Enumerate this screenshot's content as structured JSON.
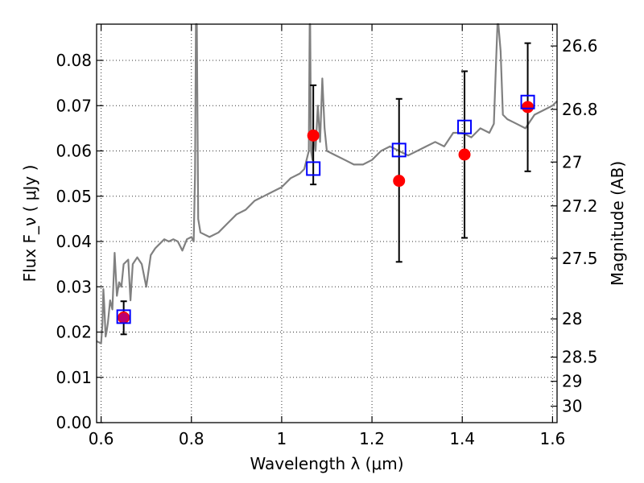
{
  "chart_data": {
    "type": "scatter",
    "xlabel": "Wavelength  λ (μm)",
    "ylabel": "Flux  F_ν  ( μJy )",
    "y2label": "Magnitude (AB)",
    "xlim": [
      0.59,
      1.61
    ],
    "ylim": [
      0.0,
      0.088
    ],
    "grid": true,
    "x_ticks": [
      0.6,
      0.8,
      1.0,
      1.2,
      1.4,
      1.6
    ],
    "x_tick_labels": [
      "0.6",
      "0.8",
      "1",
      "1.2",
      "1.4",
      "1.6"
    ],
    "y_ticks": [
      0.0,
      0.01,
      0.02,
      0.03,
      0.04,
      0.05,
      0.06,
      0.07,
      0.08
    ],
    "y_tick_labels": [
      "0.00",
      "0.01",
      "0.02",
      "0.03",
      "0.04",
      "0.05",
      "0.06",
      "0.07",
      "0.08"
    ],
    "y2_ticks": [
      26.6,
      26.8,
      27,
      27.2,
      27.5,
      28,
      28.5,
      29,
      30
    ],
    "y2_tick_labels": [
      "26.6",
      "26.8",
      "27",
      "27.2",
      "27.5",
      "28",
      "28.5",
      "29",
      "30"
    ],
    "model_spectrum": {
      "color": "#808080",
      "x": [
        0.59,
        0.6,
        0.603,
        0.605,
        0.607,
        0.61,
        0.612,
        0.615,
        0.62,
        0.625,
        0.63,
        0.635,
        0.64,
        0.645,
        0.65,
        0.66,
        0.665,
        0.67,
        0.68,
        0.69,
        0.7,
        0.71,
        0.72,
        0.73,
        0.74,
        0.75,
        0.76,
        0.77,
        0.78,
        0.79,
        0.8,
        0.805,
        0.808,
        0.81,
        0.812,
        0.815,
        0.82,
        0.84,
        0.86,
        0.88,
        0.9,
        0.92,
        0.94,
        0.96,
        0.98,
        1.0,
        1.02,
        1.04,
        1.05,
        1.06,
        1.062,
        1.063,
        1.065,
        1.068,
        1.07,
        1.075,
        1.08,
        1.085,
        1.09,
        1.095,
        1.1,
        1.12,
        1.14,
        1.16,
        1.18,
        1.2,
        1.22,
        1.24,
        1.26,
        1.28,
        1.3,
        1.32,
        1.34,
        1.36,
        1.38,
        1.4,
        1.42,
        1.44,
        1.46,
        1.47,
        1.475,
        1.478,
        1.48,
        1.485,
        1.49,
        1.5,
        1.52,
        1.54,
        1.56,
        1.58,
        1.6,
        1.61
      ],
      "y": [
        0.018,
        0.0175,
        0.022,
        0.0295,
        0.026,
        0.019,
        0.02,
        0.022,
        0.027,
        0.025,
        0.0375,
        0.028,
        0.031,
        0.03,
        0.035,
        0.036,
        0.027,
        0.035,
        0.0365,
        0.035,
        0.03,
        0.037,
        0.0385,
        0.0395,
        0.0405,
        0.04,
        0.0405,
        0.04,
        0.038,
        0.0405,
        0.041,
        0.04,
        0.055,
        0.088,
        0.088,
        0.045,
        0.042,
        0.041,
        0.042,
        0.044,
        0.046,
        0.047,
        0.049,
        0.05,
        0.051,
        0.052,
        0.054,
        0.055,
        0.056,
        0.06,
        0.088,
        0.088,
        0.06,
        0.058,
        0.064,
        0.06,
        0.07,
        0.062,
        0.076,
        0.065,
        0.06,
        0.059,
        0.058,
        0.057,
        0.057,
        0.058,
        0.06,
        0.061,
        0.06,
        0.059,
        0.06,
        0.061,
        0.062,
        0.061,
        0.064,
        0.064,
        0.063,
        0.065,
        0.064,
        0.066,
        0.08,
        0.088,
        0.088,
        0.082,
        0.068,
        0.067,
        0.066,
        0.065,
        0.068,
        0.069,
        0.07,
        0.071
      ]
    },
    "series": [
      {
        "marker": "circle",
        "color": "#ff0000",
        "x": [
          0.65,
          1.07,
          1.26,
          1.405,
          1.545
        ],
        "y": [
          0.0232,
          0.0634,
          0.0534,
          0.0592,
          0.0697
        ],
        "yerr_low": [
          0.0195,
          0.0526,
          0.0355,
          0.0408,
          0.0555
        ],
        "yerr_high": [
          0.0268,
          0.0745,
          0.0715,
          0.0776,
          0.0838
        ]
      },
      {
        "marker": "open-square",
        "color": "#0000ff",
        "x": [
          0.65,
          1.07,
          1.26,
          1.405,
          1.545
        ],
        "y": [
          0.0234,
          0.0561,
          0.0602,
          0.0653,
          0.0708
        ]
      }
    ]
  }
}
